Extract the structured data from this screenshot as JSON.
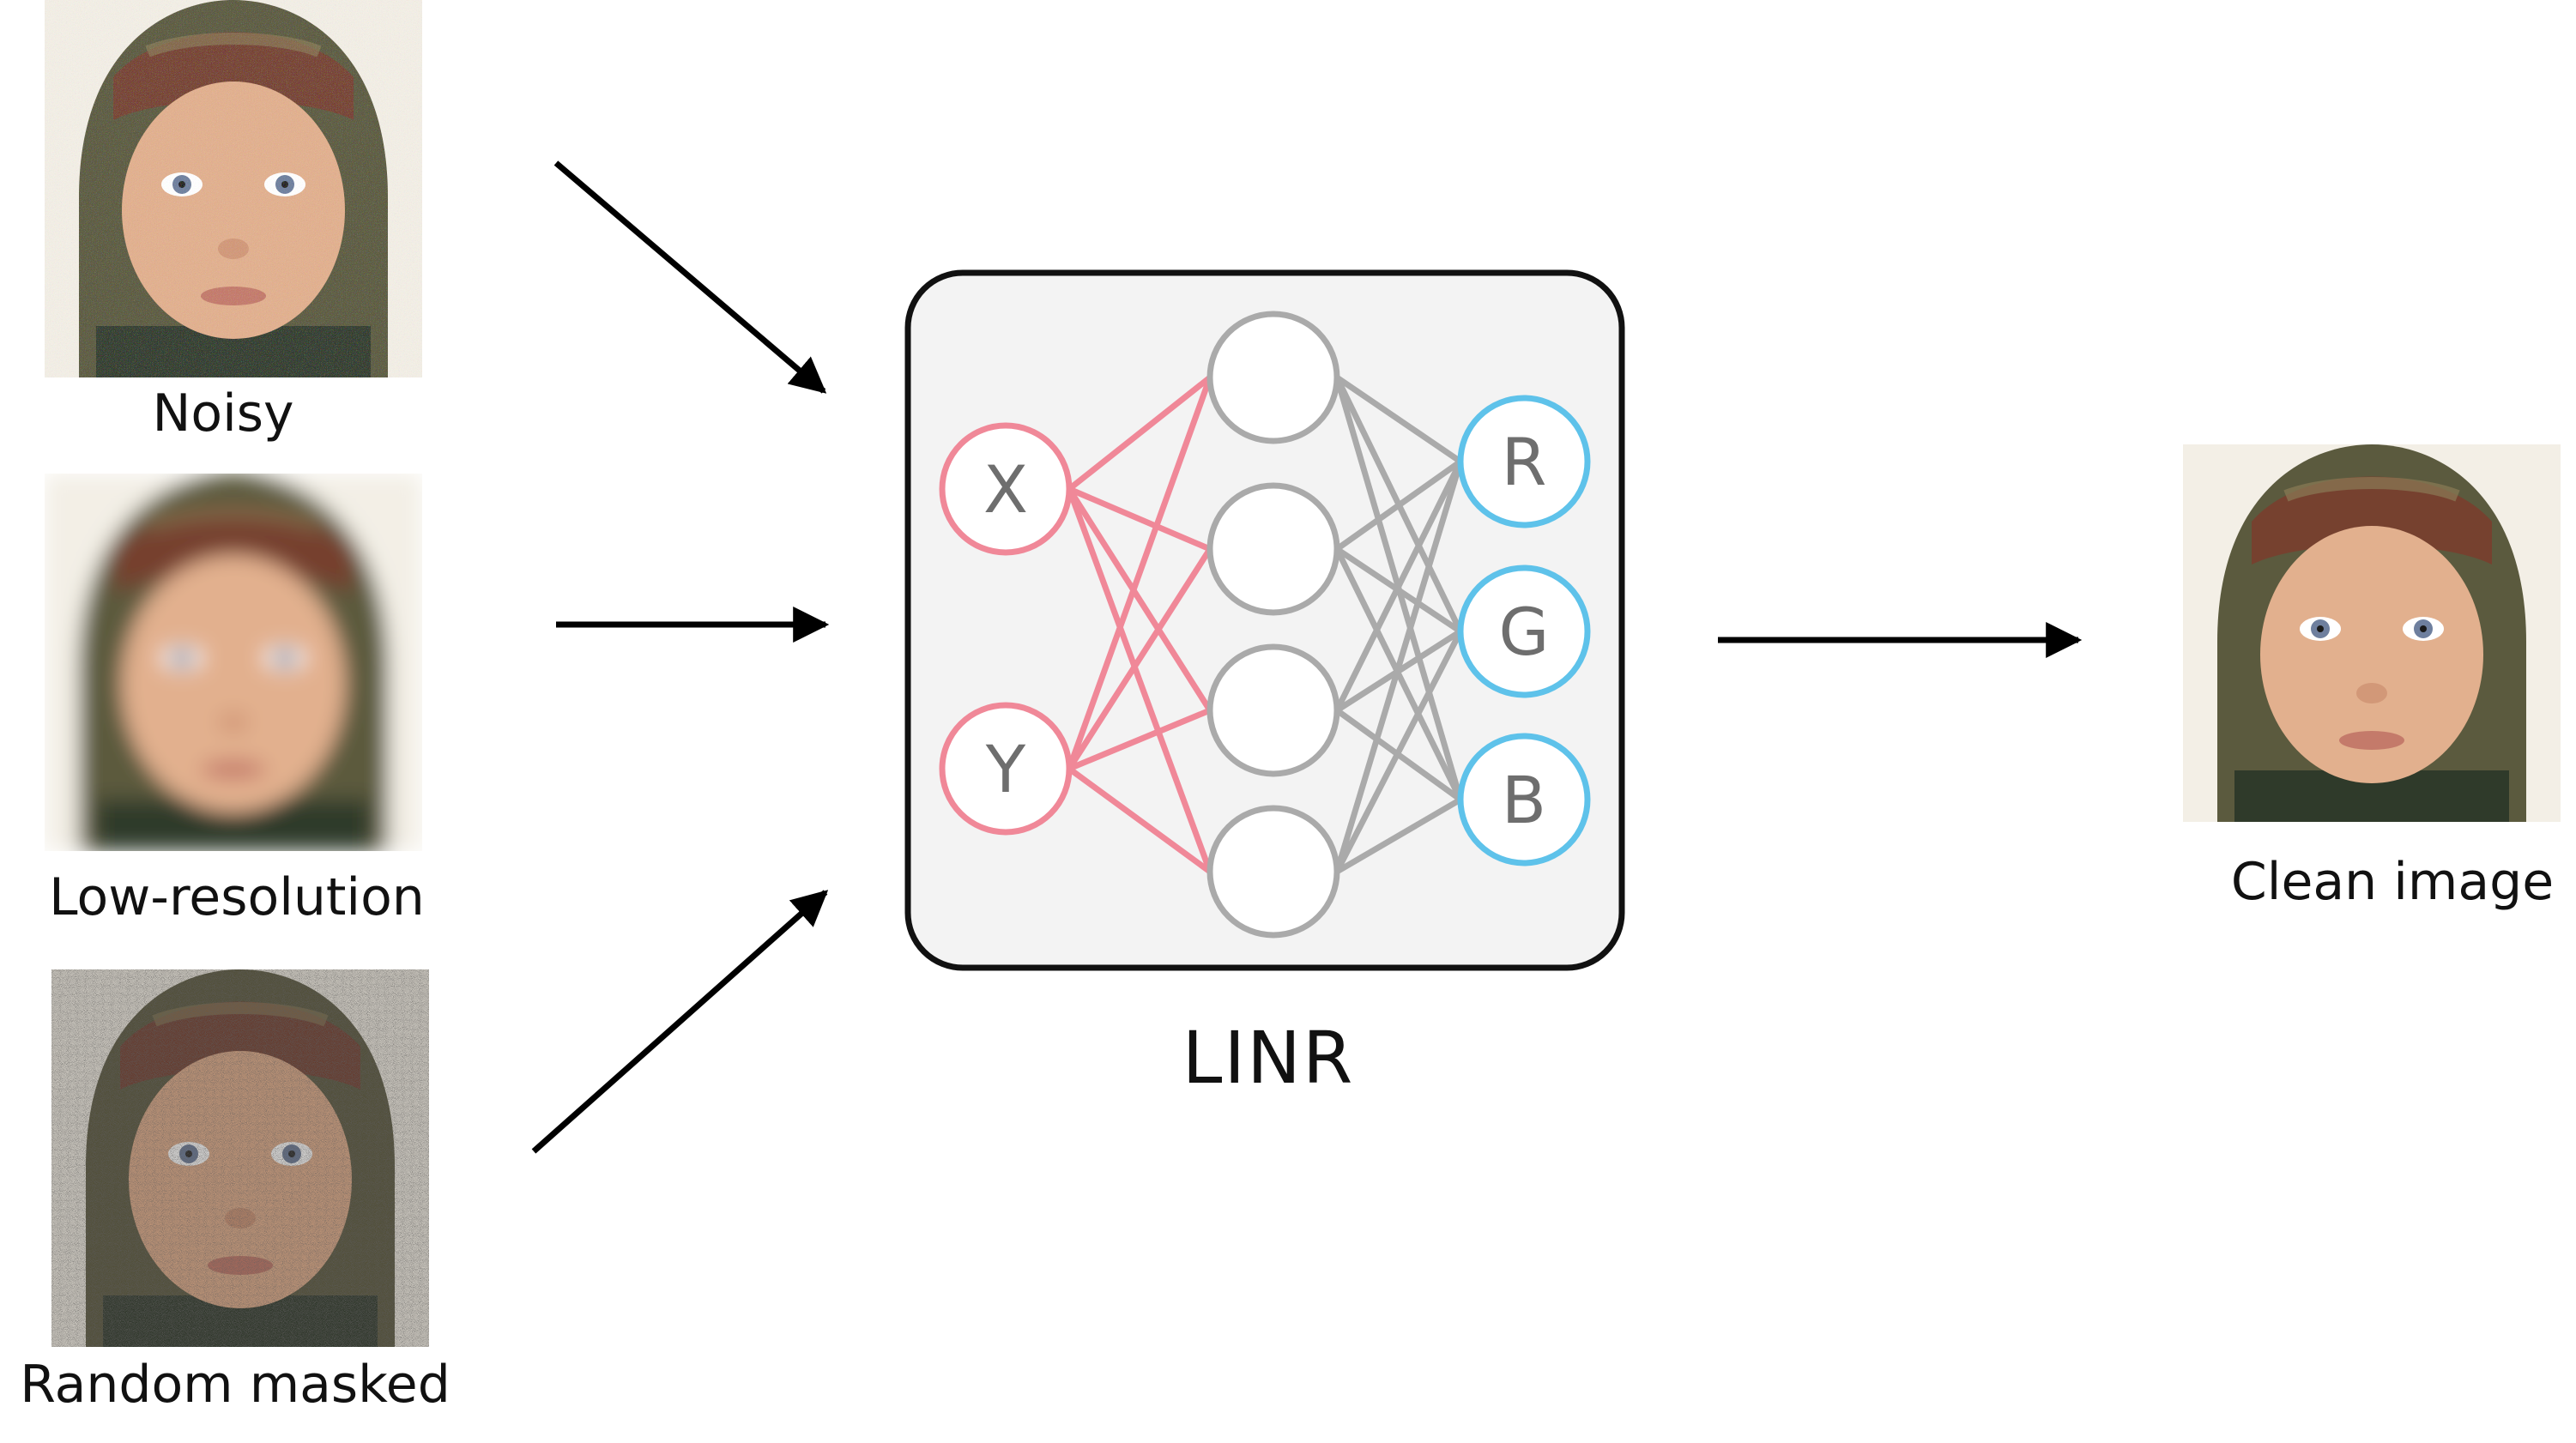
{
  "inputs": [
    {
      "caption": "Noisy",
      "kind": "noisy"
    },
    {
      "caption": "Low-resolution",
      "kind": "low-resolution"
    },
    {
      "caption": "Random masked",
      "kind": "random-masked"
    }
  ],
  "network": {
    "title": "LINR",
    "input_nodes": [
      "X",
      "Y"
    ],
    "hidden_node_count": 4,
    "output_nodes": [
      "R",
      "G",
      "B"
    ],
    "colors": {
      "input": "#f08898",
      "hidden": "#aaaaaa",
      "output": "#5ec2ea",
      "panel_fill": "#f3f3f3",
      "panel_border": "#111111"
    }
  },
  "output": {
    "caption": "Clean image"
  }
}
